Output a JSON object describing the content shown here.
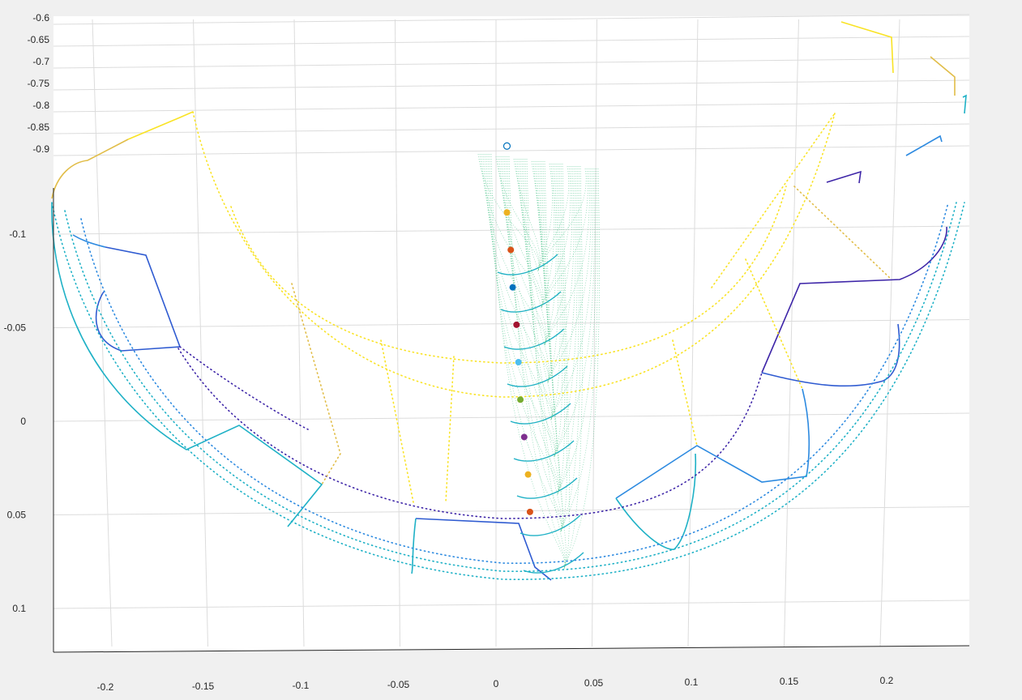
{
  "chart_data": {
    "type": "scatter",
    "view": "3d-perspective",
    "title": "",
    "xlabel": "",
    "ylabel": "",
    "zlabel": "",
    "grid": true,
    "xlim": [
      -0.23,
      0.245
    ],
    "ylim": [
      -0.15,
      0.12
    ],
    "x_ticks": [
      "-0.2",
      "-0.15",
      "-0.1",
      "-0.05",
      "0",
      "0.05",
      "0.1",
      "0.15",
      "0.2"
    ],
    "x_tick_values": [
      -0.2,
      -0.15,
      -0.1,
      -0.05,
      0,
      0.05,
      0.1,
      0.15,
      0.2
    ],
    "y_ticks": [
      "-0.1",
      "-0.05",
      "0",
      "0.05",
      "0.1"
    ],
    "y_tick_values": [
      -0.1,
      -0.05,
      0,
      0.05,
      0.1
    ],
    "z_ticks": [
      "-0.6",
      "-0.65",
      "-0.7",
      "-0.75",
      "-0.8",
      "-0.85",
      "-0.9"
    ],
    "z_tick_values": [
      -0.6,
      -0.65,
      -0.7,
      -0.75,
      -0.8,
      -0.85,
      -0.9
    ],
    "colormap": [
      "#3e26a8",
      "#2f5bd1",
      "#2d8ae0",
      "#1fb1c6",
      "#4cc38a",
      "#9bc553",
      "#e1bd48",
      "#f9e325"
    ],
    "markers": [
      {
        "type": "open-circle",
        "x": 0.004,
        "y": -0.1605,
        "color": "#0072bd"
      },
      {
        "type": "filled",
        "x": 0.004,
        "y": -0.125,
        "color": "#edb120"
      },
      {
        "type": "filled",
        "x": 0.006,
        "y": -0.105,
        "color": "#d95319"
      },
      {
        "type": "filled",
        "x": 0.007,
        "y": -0.085,
        "color": "#0072bd"
      },
      {
        "type": "filled",
        "x": 0.009,
        "y": -0.065,
        "color": "#a2142f"
      },
      {
        "type": "filled",
        "x": 0.01,
        "y": -0.045,
        "color": "#4dbeee"
      },
      {
        "type": "filled",
        "x": 0.011,
        "y": -0.025,
        "color": "#77ac30"
      },
      {
        "type": "filled",
        "x": 0.013,
        "y": -0.005,
        "color": "#7e2f8e"
      },
      {
        "type": "filled",
        "x": 0.015,
        "y": 0.015,
        "color": "#edb120"
      },
      {
        "type": "filled",
        "x": 0.016,
        "y": 0.035,
        "color": "#d95319"
      }
    ]
  }
}
